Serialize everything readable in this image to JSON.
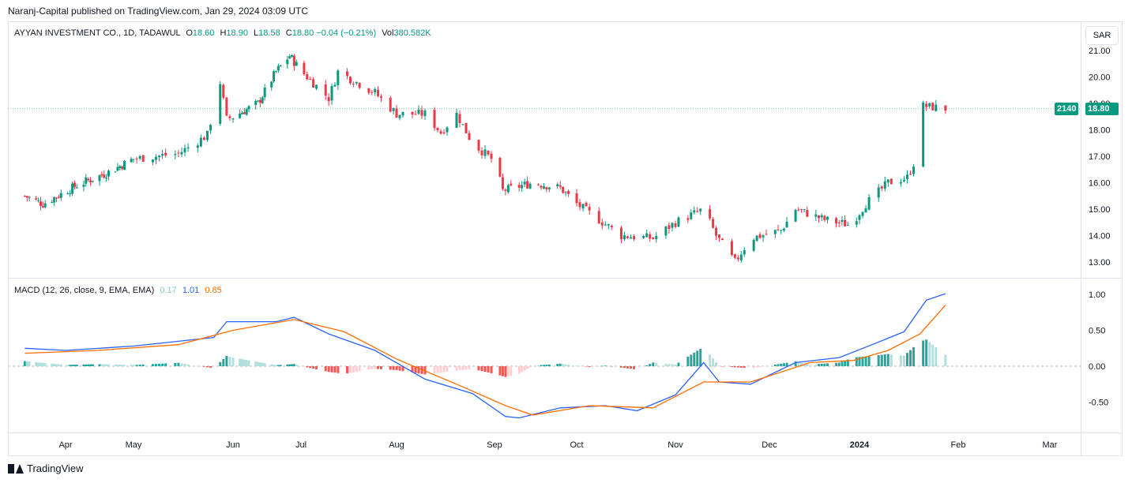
{
  "header": {
    "text": "Naranj-Capital published on TradingView.com, Jan 29, 2024 03:09 UTC"
  },
  "legend": {
    "symbol": "AYYAN INVESTMENT CO., 1D, TADAWUL",
    "o_label": "O",
    "o_value": "18.60",
    "h_label": "H",
    "h_value": "18.90",
    "l_label": "L",
    "l_value": "18.58",
    "c_label": "C",
    "c_value": "18.80",
    "change": "−0.04 (−0.21%)",
    "vol_label": "Vol",
    "vol_value": "380.582K"
  },
  "macd_legend": {
    "title": "MACD (12, 26, close, 9, EMA, EMA)",
    "hist": "0.17",
    "macd": "1.01",
    "signal": "0.85"
  },
  "currency": "SAR",
  "price_badges": {
    "countdown": "2140",
    "last_price": "18.80"
  },
  "footer": {
    "brand": "TradingView"
  },
  "colors": {
    "up": "#089981",
    "down": "#f23645",
    "macd_line": "#2962ff",
    "signal_line": "#ff6d00",
    "hist_up_strong": "#26a69a",
    "hist_up_weak": "#b2dfdb",
    "hist_down_strong": "#ff5252",
    "hist_down_weak": "#ffcdd2"
  },
  "chart_data": [
    {
      "type": "candlestick",
      "title": "AYYAN INVESTMENT CO., 1D, TADAWUL",
      "x_ticks": [
        "Apr",
        "May",
        "Jun",
        "Jul",
        "Aug",
        "Sep",
        "Oct",
        "Nov",
        "Dec",
        "2024",
        "Feb",
        "Mar"
      ],
      "y_ticks": [
        "13.00",
        "14.00",
        "15.00",
        "16.00",
        "17.00",
        "18.00",
        "19.00",
        "20.00",
        "21.00"
      ],
      "ylim": [
        12.4,
        21.2
      ],
      "x_anchors": [
        {
          "date": "2023-03-14",
          "close": 15.5
        },
        {
          "date": "2023-03-22",
          "close": 15.2
        },
        {
          "date": "2023-04-06",
          "close": 15.9
        },
        {
          "date": "2023-04-20",
          "close": 16.4
        },
        {
          "date": "2023-05-01",
          "close": 16.9
        },
        {
          "date": "2023-05-15",
          "close": 17.1
        },
        {
          "date": "2023-05-24",
          "close": 17.8
        },
        {
          "date": "2023-05-28",
          "close": 19.8
        },
        {
          "date": "2023-05-30",
          "close": 18.4
        },
        {
          "date": "2023-06-12",
          "close": 19.0
        },
        {
          "date": "2023-06-20",
          "close": 20.2
        },
        {
          "date": "2023-06-26",
          "close": 20.8
        },
        {
          "date": "2023-07-10",
          "close": 19.2
        },
        {
          "date": "2023-07-13",
          "close": 20.2
        },
        {
          "date": "2023-07-25",
          "close": 19.4
        },
        {
          "date": "2023-08-01",
          "close": 18.6
        },
        {
          "date": "2023-08-10",
          "close": 18.6
        },
        {
          "date": "2023-08-15",
          "close": 17.9
        },
        {
          "date": "2023-08-20",
          "close": 18.6
        },
        {
          "date": "2023-08-25",
          "close": 17.5
        },
        {
          "date": "2023-09-01",
          "close": 16.8
        },
        {
          "date": "2023-09-04",
          "close": 15.7
        },
        {
          "date": "2023-09-15",
          "close": 16.0
        },
        {
          "date": "2023-09-25",
          "close": 15.8
        },
        {
          "date": "2023-10-01",
          "close": 15.2
        },
        {
          "date": "2023-10-15",
          "close": 14.0
        },
        {
          "date": "2023-10-25",
          "close": 13.9
        },
        {
          "date": "2023-11-01",
          "close": 14.5
        },
        {
          "date": "2023-11-10",
          "close": 15.0
        },
        {
          "date": "2023-11-14",
          "close": 14.0
        },
        {
          "date": "2023-11-20",
          "close": 13.0
        },
        {
          "date": "2023-11-25",
          "close": 13.9
        },
        {
          "date": "2023-12-05",
          "close": 14.2
        },
        {
          "date": "2023-12-10",
          "close": 15.0
        },
        {
          "date": "2023-12-20",
          "close": 14.6
        },
        {
          "date": "2023-12-29",
          "close": 14.4
        },
        {
          "date": "2024-01-03",
          "close": 15.2
        },
        {
          "date": "2024-01-10",
          "close": 16.0
        },
        {
          "date": "2024-01-16",
          "close": 16.2
        },
        {
          "date": "2024-01-19",
          "close": 17.0
        },
        {
          "date": "2024-01-21",
          "close": 18.9
        },
        {
          "date": "2024-01-28",
          "close": 18.8
        }
      ]
    },
    {
      "type": "line",
      "title": "MACD (12, 26, close, 9, EMA, EMA)",
      "y_ticks": [
        "-0.50",
        "0.00",
        "0.50",
        "1.00"
      ],
      "ylim": [
        -0.92,
        1.1
      ],
      "series": [
        {
          "name": "MACD",
          "points": [
            {
              "date": "2023-03-14",
              "value": 0.25
            },
            {
              "date": "2023-04-01",
              "value": 0.22
            },
            {
              "date": "2023-05-01",
              "value": 0.28
            },
            {
              "date": "2023-05-26",
              "value": 0.4
            },
            {
              "date": "2023-05-30",
              "value": 0.62
            },
            {
              "date": "2023-06-20",
              "value": 0.62
            },
            {
              "date": "2023-06-28",
              "value": 0.68
            },
            {
              "date": "2023-07-10",
              "value": 0.45
            },
            {
              "date": "2023-07-25",
              "value": 0.22
            },
            {
              "date": "2023-08-10",
              "value": -0.18
            },
            {
              "date": "2023-08-25",
              "value": -0.38
            },
            {
              "date": "2023-09-05",
              "value": -0.7
            },
            {
              "date": "2023-09-10",
              "value": -0.72
            },
            {
              "date": "2023-09-25",
              "value": -0.58
            },
            {
              "date": "2023-10-10",
              "value": -0.55
            },
            {
              "date": "2023-10-20",
              "value": -0.62
            },
            {
              "date": "2023-11-01",
              "value": -0.4
            },
            {
              "date": "2023-11-10",
              "value": 0.05
            },
            {
              "date": "2023-11-15",
              "value": -0.22
            },
            {
              "date": "2023-11-25",
              "value": -0.25
            },
            {
              "date": "2023-12-10",
              "value": 0.05
            },
            {
              "date": "2023-12-25",
              "value": 0.12
            },
            {
              "date": "2024-01-05",
              "value": 0.3
            },
            {
              "date": "2024-01-15",
              "value": 0.48
            },
            {
              "date": "2024-01-22",
              "value": 0.92
            },
            {
              "date": "2024-01-28",
              "value": 1.01
            }
          ]
        },
        {
          "name": "Signal",
          "points": [
            {
              "date": "2023-03-14",
              "value": 0.18
            },
            {
              "date": "2023-04-15",
              "value": 0.22
            },
            {
              "date": "2023-05-15",
              "value": 0.3
            },
            {
              "date": "2023-06-01",
              "value": 0.5
            },
            {
              "date": "2023-06-28",
              "value": 0.65
            },
            {
              "date": "2023-07-15",
              "value": 0.48
            },
            {
              "date": "2023-08-01",
              "value": 0.1
            },
            {
              "date": "2023-08-20",
              "value": -0.25
            },
            {
              "date": "2023-09-05",
              "value": -0.55
            },
            {
              "date": "2023-09-15",
              "value": -0.68
            },
            {
              "date": "2023-10-05",
              "value": -0.55
            },
            {
              "date": "2023-10-25",
              "value": -0.58
            },
            {
              "date": "2023-11-10",
              "value": -0.22
            },
            {
              "date": "2023-11-25",
              "value": -0.22
            },
            {
              "date": "2023-12-15",
              "value": 0.05
            },
            {
              "date": "2023-12-30",
              "value": 0.08
            },
            {
              "date": "2024-01-10",
              "value": 0.22
            },
            {
              "date": "2024-01-20",
              "value": 0.45
            },
            {
              "date": "2024-01-28",
              "value": 0.85
            }
          ]
        }
      ]
    }
  ]
}
